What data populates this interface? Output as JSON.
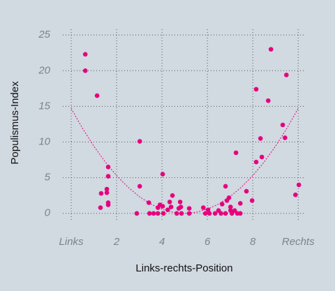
{
  "chart_data": {
    "type": "scatter",
    "xlabel": "Links-rechts-Position",
    "ylabel": "Populismus-Index",
    "xlim": [
      -0.37,
      10.3
    ],
    "ylim": [
      -1,
      25.8
    ],
    "xticks": [
      {
        "value": 0,
        "label": "Links"
      },
      2,
      4,
      6,
      8,
      {
        "value": 10,
        "label": "Rechts"
      }
    ],
    "yticks": [
      0,
      5,
      10,
      15,
      20,
      25
    ],
    "grid": true,
    "series": [
      {
        "color": "#e6007e",
        "x": [
          0.62,
          0.62,
          1.14,
          1.63,
          1.63,
          1.32,
          1.57,
          1.57,
          1.63,
          1.63,
          1.29,
          3.02,
          3.02,
          2.89,
          3.42,
          3.45,
          3.63,
          3.82,
          3.82,
          3.91,
          4.03,
          4.03,
          4.06,
          4.25,
          4.4,
          4.46,
          4.34,
          4.65,
          4.74,
          4.83,
          4.8,
          4.86,
          5.2,
          5.2,
          5.82,
          5.91,
          6.03,
          6.09,
          6.34,
          6.49,
          6.6,
          6.65,
          6.8,
          6.8,
          6.86,
          6.95,
          7.02,
          7.02,
          7.08,
          7.2,
          7.26,
          7.32,
          7.45,
          7.45,
          7.72,
          7.97,
          8.15,
          8.15,
          8.34,
          8.4,
          8.68,
          8.8,
          9.32,
          9.42,
          9.48,
          9.88,
          10.03
        ],
        "values": [
          22.3,
          20,
          16.5,
          6.5,
          5.2,
          2.8,
          3.4,
          2.9,
          1.5,
          1.2,
          0.8,
          10.1,
          3.8,
          0,
          1.5,
          0,
          0,
          0.8,
          0,
          1.2,
          5.5,
          1,
          0,
          0.5,
          0.9,
          2.5,
          1.6,
          0,
          0.7,
          0.9,
          1.6,
          0,
          0.7,
          0,
          0.8,
          0,
          0.5,
          0,
          0,
          0.4,
          0,
          1.3,
          0,
          3.8,
          1.8,
          2.2,
          0.9,
          0.4,
          0,
          0.4,
          8.5,
          0,
          1.4,
          0,
          3.1,
          1.8,
          7.2,
          17.4,
          10.5,
          7.9,
          15.8,
          23,
          12.4,
          10.6,
          19.4,
          2.6,
          4
        ]
      }
    ],
    "fit": {
      "color": "#e6007e",
      "x": [
        0,
        0.5,
        1,
        1.5,
        2,
        2.5,
        3,
        3.5,
        4,
        4.5,
        5,
        5.5,
        6,
        6.5,
        7,
        7.5,
        8,
        8.5,
        9,
        9.5,
        10
      ],
      "values": [
        14.7,
        11.91,
        9.41,
        7.2,
        5.29,
        3.68,
        2.35,
        1.32,
        0.59,
        0.15,
        0,
        0.15,
        0.59,
        1.32,
        2.35,
        3.68,
        5.29,
        7.2,
        9.41,
        11.91,
        14.7
      ]
    }
  }
}
